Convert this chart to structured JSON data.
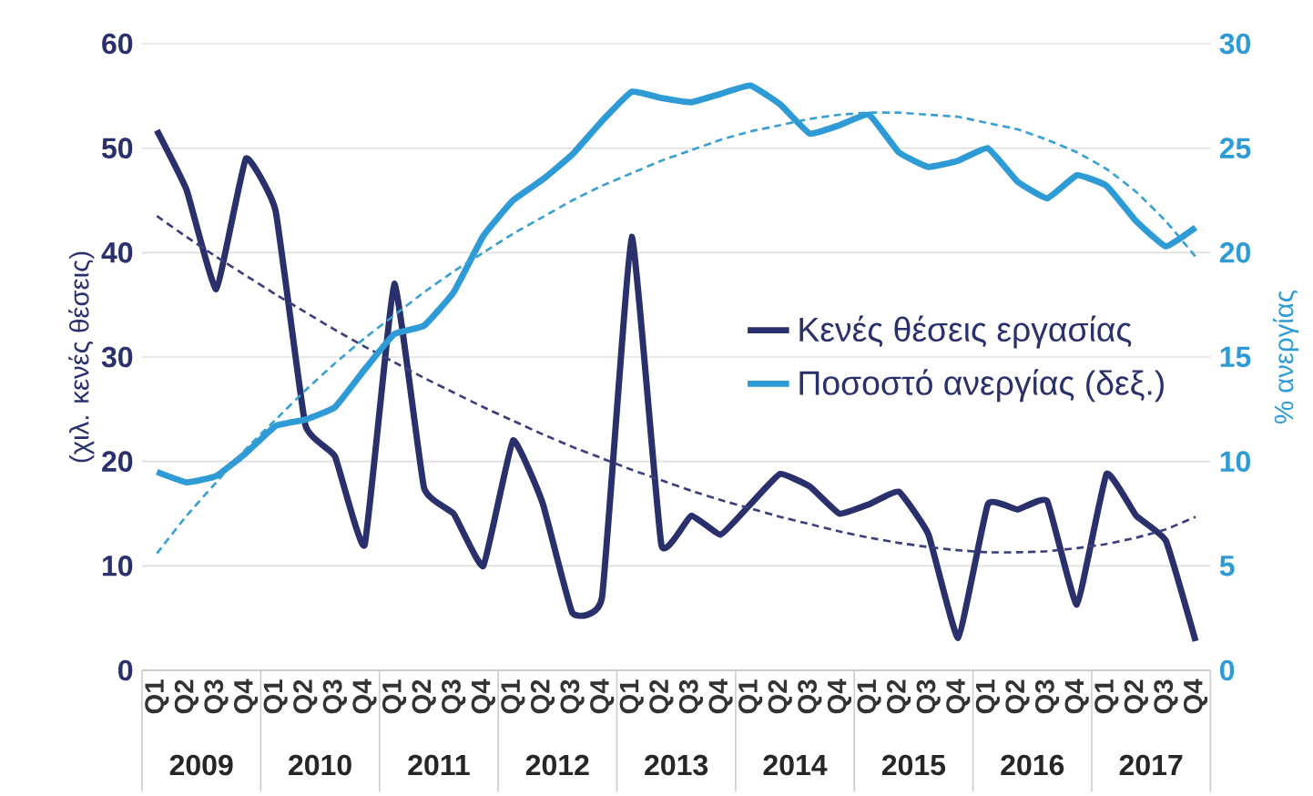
{
  "chart_data": {
    "type": "line",
    "ylabel": "(χιλ. κενές θέσεις)",
    "y2label": "% ανεργίας",
    "categories": [
      "Q1",
      "Q2",
      "Q3",
      "Q4",
      "Q1",
      "Q2",
      "Q3",
      "Q4",
      "Q1",
      "Q2",
      "Q3",
      "Q4",
      "Q1",
      "Q2",
      "Q3",
      "Q4",
      "Q1",
      "Q2",
      "Q3",
      "Q4",
      "Q1",
      "Q2",
      "Q3",
      "Q4",
      "Q1",
      "Q2",
      "Q3",
      "Q4",
      "Q1",
      "Q2",
      "Q3",
      "Q4",
      "Q1",
      "Q2",
      "Q3",
      "Q4"
    ],
    "annotations": [
      "2009",
      "2010",
      "2011",
      "2012",
      "2013",
      "2014",
      "2015",
      "2016",
      "2017"
    ],
    "ylim": [
      0,
      60
    ],
    "yticks": [
      0,
      10,
      20,
      30,
      40,
      50,
      60
    ],
    "y2lim": [
      0,
      30
    ],
    "y2ticks": [
      0,
      5,
      10,
      15,
      20,
      25,
      30
    ],
    "grid": "y",
    "legend": "right",
    "marker": "none",
    "series": [
      {
        "name": "Κενές θέσεις εργασίας",
        "color": "#29306b",
        "line_style": "solid",
        "values": [
          51.7,
          46,
          36.5,
          49,
          44,
          23.5,
          20.5,
          12,
          37,
          17.5,
          15,
          10,
          22,
          16,
          5.5,
          7,
          41.5,
          12.0,
          14.8,
          13,
          15.9,
          18.8,
          17.6,
          15,
          15.9,
          17.1,
          13,
          3.1,
          15.9,
          15.4,
          16.2,
          6.3,
          18.8,
          14.8,
          12.4,
          2.8
        ]
      },
      {
        "name": "Ποσοστό ανεργίας (δεξ.)",
        "color": "#2e9bd6",
        "axis": "y2",
        "line_style": "solid",
        "values": [
          9.5,
          9.0,
          9.3,
          10.4,
          11.7,
          12.0,
          12.6,
          14.4,
          16.1,
          16.5,
          18.1,
          20.8,
          22.5,
          23.5,
          24.7,
          26.3,
          27.7,
          27.4,
          27.2,
          27.6,
          28.0,
          27.1,
          25.7,
          26.1,
          26.6,
          24.8,
          24.1,
          24.4,
          25.0,
          23.4,
          22.6,
          23.7,
          23.2,
          21.5,
          20.3,
          21.2
        ]
      },
      {
        "type": "line",
        "color": "#3b3f7a",
        "line_style": "dashed",
        "values": [
          43.5,
          41.5,
          39.6,
          37.8,
          36,
          34.3,
          32.6,
          31,
          29.5,
          28,
          26.6,
          25.2,
          23.9,
          22.6,
          21.4,
          20.3,
          19.2,
          18.2,
          17.2,
          16.3,
          15.5,
          14.7,
          14,
          13.3,
          12.7,
          12.2,
          11.8,
          11.5,
          11.3,
          11.3,
          11.4,
          11.7,
          12.1,
          12.7,
          13.5,
          14.7
        ]
      },
      {
        "type": "line",
        "color": "#3aa0d0",
        "axis": "y2",
        "line_style": "dashed",
        "values": [
          5.6,
          7.4,
          9.0,
          10.6,
          12.0,
          13.4,
          14.7,
          15.9,
          17.0,
          18.1,
          19.1,
          20.0,
          20.9,
          21.7,
          22.5,
          23.2,
          23.8,
          24.4,
          24.9,
          25.4,
          25.8,
          26.1,
          26.4,
          26.6,
          26.7,
          26.7,
          26.6,
          26.5,
          26.2,
          25.9,
          25.4,
          24.8,
          24.0,
          22.9,
          21.5,
          19.8
        ]
      }
    ]
  }
}
